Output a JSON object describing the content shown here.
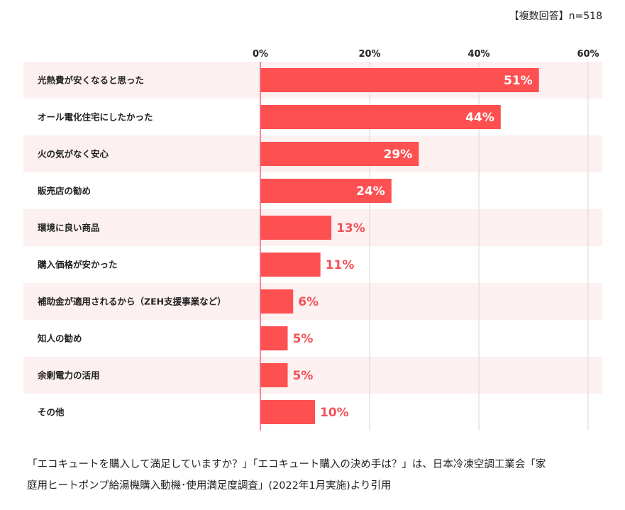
{
  "note": "【複数回答】n=518",
  "colors": {
    "bar": "#fe4f51",
    "band": "#fdf0f0",
    "axis": "#f06575",
    "grid": "#dddddd",
    "value_outside": "#f25157",
    "value_inside": "#ffffff"
  },
  "chart_data": {
    "type": "bar",
    "orientation": "horizontal",
    "title": "",
    "xlabel": "",
    "ylabel": "",
    "xlim": [
      0,
      60
    ],
    "grid": true,
    "x_ticks": [
      {
        "value": 0,
        "label": "0%"
      },
      {
        "value": 20,
        "label": "20%"
      },
      {
        "value": 40,
        "label": "40%"
      },
      {
        "value": 60,
        "label": "60%"
      }
    ],
    "categories": [
      "光熱費が安くなると思った",
      "オール電化住宅にしたかった",
      "火の気がなく安心",
      "販売店の勧め",
      "環境に良い商品",
      "購入価格が安かった",
      "補助金が適用されるから（ZEH支援事業など）",
      "知人の勧め",
      "余剰電力の活用",
      "その他"
    ],
    "values": [
      51,
      44,
      29,
      24,
      13,
      11,
      6,
      5,
      5,
      10
    ],
    "value_labels": [
      "51%",
      "44%",
      "29%",
      "24%",
      "13%",
      "11%",
      "6%",
      "5%",
      "5%",
      "10%"
    ]
  },
  "footer": {
    "line1": "「エコキュートを購入して満足していますか？」「エコキュート購入の決め手は？」は、日本冷凍空調工業会「家",
    "line2": "庭用ヒートポンプ給湯機購入動機･使用満足度調査」(2022年1月実施)より引用"
  }
}
